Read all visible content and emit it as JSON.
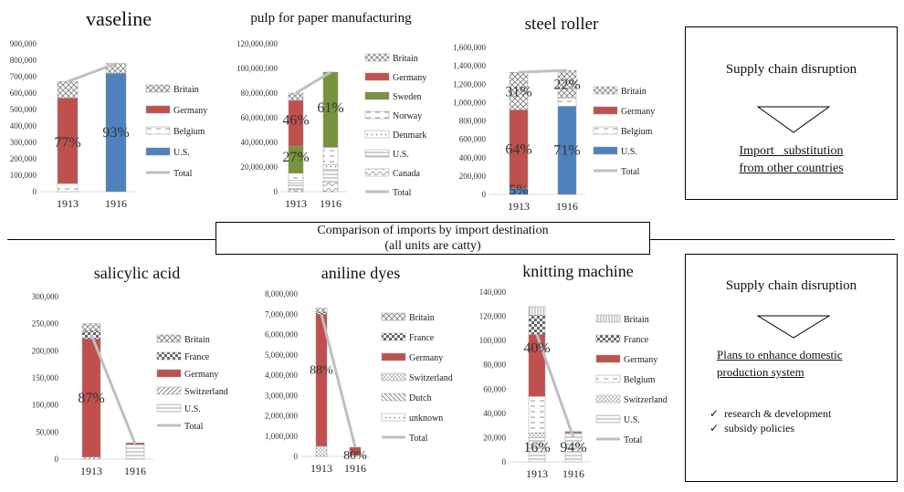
{
  "section_label": {
    "line1": "Comparison of imports by import destination",
    "line2": "(all units are catty)"
  },
  "box_top": {
    "heading": "Supply chain disruption",
    "result_line1": "Import   substitution",
    "result_line2": "from other countries"
  },
  "box_bottom": {
    "heading": "Supply chain disruption",
    "result_line1": "Plans to enhance domestic",
    "result_line2": "production system",
    "bullets": [
      "research & development",
      "subsidy policies"
    ]
  },
  "colors": {
    "germany": "#c0504d",
    "us": "#4f81bd",
    "sweden": "#77933c",
    "total": "#bfbfbf",
    "axis": "#d9d9d9"
  },
  "chart_data": [
    {
      "type": "bar",
      "stacked": true,
      "title": "vaseline",
      "categories": [
        "1913",
        "1916"
      ],
      "ylim": [
        0,
        900000
      ],
      "yticks": [
        "0",
        "100,000",
        "200,000",
        "300,000",
        "400,000",
        "500,000",
        "600,000",
        "700,000",
        "800,000",
        "900,000"
      ],
      "series": [
        {
          "name": "U.S.",
          "values": [
            0,
            720000
          ],
          "fill": "us"
        },
        {
          "name": "Belgium",
          "values": [
            50000,
            0
          ],
          "fill": "dash"
        },
        {
          "name": "Germany",
          "values": [
            520000,
            0
          ],
          "fill": "germany"
        },
        {
          "name": "Britain",
          "values": [
            100000,
            60000
          ],
          "fill": "cross"
        }
      ],
      "legend": [
        "Britain",
        "Germany",
        "Belgium",
        "U.S."
      ],
      "total": [
        670000,
        780000
      ],
      "labels": [
        {
          "cat": 0,
          "y": 300000,
          "text": "77%"
        },
        {
          "cat": 1,
          "y": 360000,
          "text": "93%"
        }
      ]
    },
    {
      "type": "bar",
      "stacked": true,
      "title": "pulp for paper manufacturing",
      "categories": [
        "1913",
        "1916"
      ],
      "ylim": [
        0,
        120000000
      ],
      "yticks": [
        "0",
        "20,000,000",
        "40,000,000",
        "60,000,000",
        "80,000,000",
        "100,000,000",
        "120,000,000"
      ],
      "series": [
        {
          "name": "Canada",
          "values": [
            2000000,
            8000000
          ],
          "fill": "wave"
        },
        {
          "name": "U.S.",
          "values": [
            5000000,
            10000000
          ],
          "fill": "hlines"
        },
        {
          "name": "Denmark",
          "values": [
            2000000,
            4000000
          ],
          "fill": "dots"
        },
        {
          "name": "Norway",
          "values": [
            6000000,
            14000000
          ],
          "fill": "dash"
        },
        {
          "name": "Sweden",
          "values": [
            22000000,
            61000000
          ],
          "fill": "sweden"
        },
        {
          "name": "Germany",
          "values": [
            37000000,
            0
          ],
          "fill": "germany"
        },
        {
          "name": "Britain",
          "values": [
            6000000,
            0
          ],
          "fill": "cross"
        }
      ],
      "legend": [
        "Britain",
        "Germany",
        "Sweden",
        "Norway",
        "Denmark",
        "U.S.",
        "Canada"
      ],
      "total": [
        80000000,
        97000000
      ],
      "labels": [
        {
          "cat": 0,
          "y": 28000000,
          "text": "27%"
        },
        {
          "cat": 0,
          "y": 58000000,
          "text": "46%"
        },
        {
          "cat": 1,
          "y": 68000000,
          "text": "61%"
        }
      ]
    },
    {
      "type": "bar",
      "stacked": true,
      "title": "steel roller",
      "categories": [
        "1913",
        "1916"
      ],
      "ylim": [
        0,
        1600000
      ],
      "yticks": [
        "0",
        "200,000",
        "400,000",
        "600,000",
        "800,000",
        "1,000,000",
        "1,200,000",
        "1,400,000",
        "1,600,000"
      ],
      "series": [
        {
          "name": "U.S.",
          "values": [
            66000,
            960000
          ],
          "fill": "us"
        },
        {
          "name": "Belgium",
          "values": [
            0,
            90000
          ],
          "fill": "dash"
        },
        {
          "name": "Germany",
          "values": [
            854000,
            0
          ],
          "fill": "germany"
        },
        {
          "name": "Britain",
          "values": [
            410000,
            300000
          ],
          "fill": "cross"
        }
      ],
      "legend": [
        "Britain",
        "Germany",
        "Belgium",
        "U.S."
      ],
      "total": [
        1330000,
        1350000
      ],
      "labels": [
        {
          "cat": 0,
          "y": 50000,
          "text": "5%"
        },
        {
          "cat": 0,
          "y": 490000,
          "text": "64%"
        },
        {
          "cat": 0,
          "y": 1120000,
          "text": "31%"
        },
        {
          "cat": 1,
          "y": 480000,
          "text": "71%"
        },
        {
          "cat": 1,
          "y": 1200000,
          "text": "22%"
        }
      ]
    },
    {
      "type": "bar",
      "stacked": true,
      "title": "salicylic acid",
      "categories": [
        "1913",
        "1916"
      ],
      "ylim": [
        0,
        300000
      ],
      "yticks": [
        "0",
        "50,000",
        "100,000",
        "150,000",
        "200,000",
        "250,000",
        "300,000"
      ],
      "series": [
        {
          "name": "U.S.",
          "values": [
            0,
            27000
          ],
          "fill": "hlines"
        },
        {
          "name": "Switzerland",
          "values": [
            4000,
            0
          ],
          "fill": "diag"
        },
        {
          "name": "Germany",
          "values": [
            218000,
            3000
          ],
          "fill": "germany"
        },
        {
          "name": "France",
          "values": [
            15000,
            0
          ],
          "fill": "checker"
        },
        {
          "name": "Britain",
          "values": [
            13000,
            0
          ],
          "fill": "cross"
        }
      ],
      "legend": [
        "Britain",
        "France",
        "Germany",
        "Switzerland",
        "U.S."
      ],
      "total": [
        230000,
        28000
      ],
      "labels": [
        {
          "cat": 0,
          "y": 113000,
          "text": "87%"
        }
      ]
    },
    {
      "type": "bar",
      "stacked": true,
      "title": "aniline dyes",
      "categories": [
        "1913",
        "1916"
      ],
      "ylim": [
        0,
        8000000
      ],
      "yticks": [
        "0",
        "1,000,000",
        "2,000,000",
        "3,000,000",
        "4,000,000",
        "5,000,000",
        "6,000,000",
        "7,000,000",
        "8,000,000"
      ],
      "series": [
        {
          "name": "unknown",
          "values": [
            0,
            50000
          ],
          "fill": "dots"
        },
        {
          "name": "Dutch",
          "values": [
            0,
            0
          ],
          "fill": "diag2"
        },
        {
          "name": "Switzerland",
          "values": [
            500000,
            0
          ],
          "fill": "stip"
        },
        {
          "name": "Germany",
          "values": [
            6500000,
            400000
          ],
          "fill": "germany"
        },
        {
          "name": "France",
          "values": [
            100000,
            0
          ],
          "fill": "checker"
        },
        {
          "name": "Britain",
          "values": [
            200000,
            0
          ],
          "fill": "cross"
        }
      ],
      "legend": [
        "Britain",
        "France",
        "Germany",
        "Switzerland",
        "Dutch",
        "unknown",
        "Total"
      ],
      "total": [
        7000000,
        450000
      ],
      "labels": [
        {
          "cat": 0,
          "y": 4300000,
          "text": "88%"
        },
        {
          "cat": 1,
          "y": 100000,
          "text": "80%"
        }
      ]
    },
    {
      "type": "bar",
      "stacked": true,
      "title": "knitting machine",
      "categories": [
        "1913",
        "1916"
      ],
      "ylim": [
        0,
        140000
      ],
      "yticks": [
        "0",
        "20,000",
        "40,000",
        "60,000",
        "80,000",
        "100,000",
        "120,000",
        "140,000"
      ],
      "series": [
        {
          "name": "U.S.",
          "values": [
            20000,
            24000
          ],
          "fill": "hlines"
        },
        {
          "name": "Switzerland",
          "values": [
            4000,
            0
          ],
          "fill": "stip"
        },
        {
          "name": "Belgium",
          "values": [
            30000,
            0
          ],
          "fill": "dash"
        },
        {
          "name": "Germany",
          "values": [
            51000,
            1000
          ],
          "fill": "germany"
        },
        {
          "name": "France",
          "values": [
            16000,
            0
          ],
          "fill": "checker"
        },
        {
          "name": "Britain",
          "values": [
            7000,
            0
          ],
          "fill": "vlines"
        }
      ],
      "legend": [
        "Britain",
        "France",
        "Germany",
        "Belgium",
        "Switzerland",
        "U.S."
      ],
      "total": [
        105000,
        20000
      ],
      "labels": [
        {
          "cat": 0,
          "y": 12000,
          "text": "16%"
        },
        {
          "cat": 0,
          "y": 94000,
          "text": "40%"
        },
        {
          "cat": 1,
          "y": 12000,
          "text": "94%"
        }
      ]
    }
  ]
}
